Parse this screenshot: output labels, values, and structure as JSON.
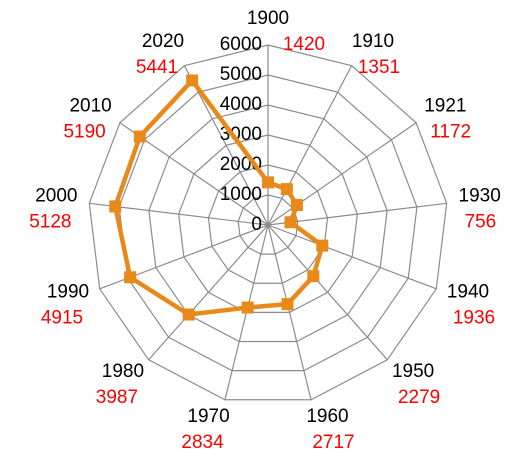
{
  "chart_data": {
    "type": "radar",
    "categories": [
      "1900",
      "1910",
      "1921",
      "1930",
      "1940",
      "1950",
      "1960",
      "1970",
      "1980",
      "1990",
      "2000",
      "2010",
      "2020"
    ],
    "series": [
      {
        "color": "#e8891a",
        "values": [
          1420,
          1351,
          1172,
          756,
          1936,
          2279,
          2717,
          2834,
          3987,
          4915,
          5128,
          5190,
          5441
        ]
      }
    ],
    "rlim": [
      0,
      6000
    ],
    "rticks": [
      0,
      1000,
      2000,
      3000,
      4000,
      5000,
      6000
    ],
    "grid": true,
    "value_label_color": "#ff0000"
  }
}
